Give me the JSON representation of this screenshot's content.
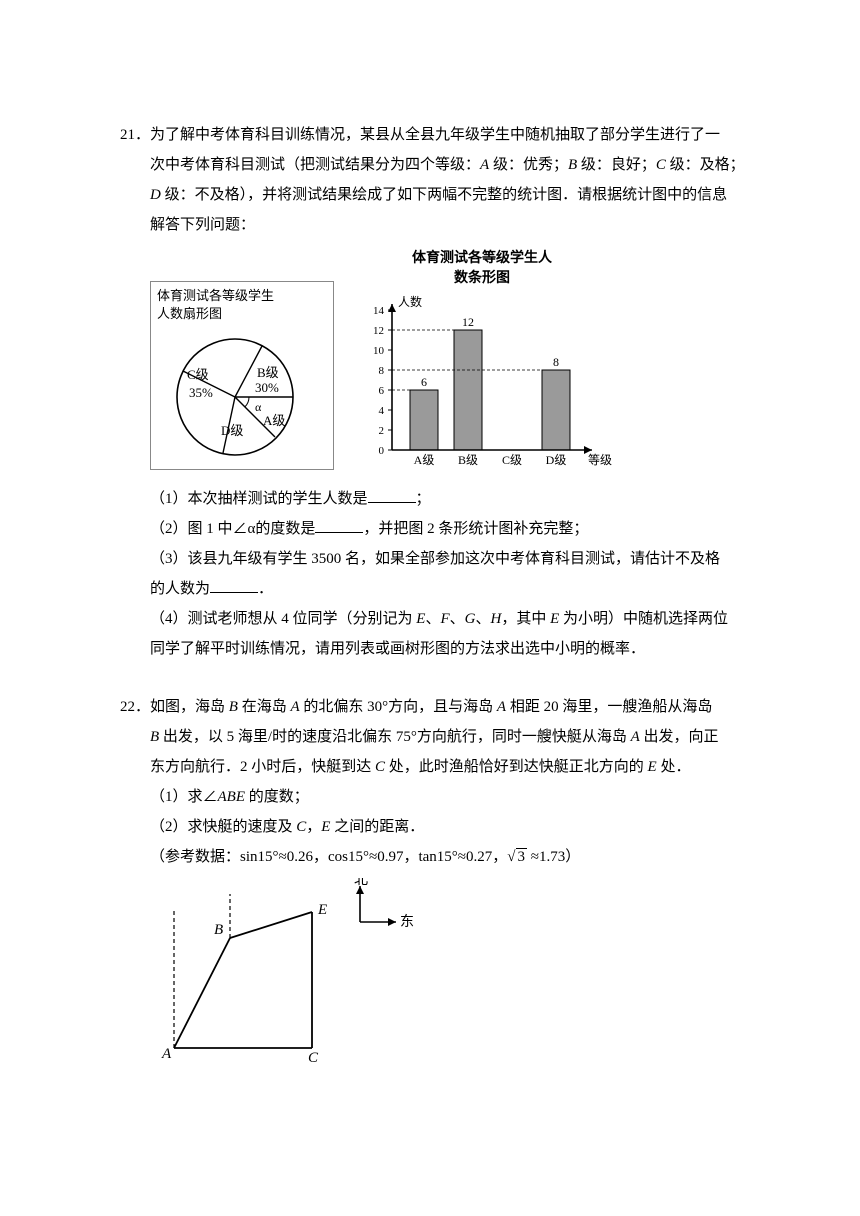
{
  "q21": {
    "num": "21．",
    "stem1": "为了解中考体育科目训练情况，某县从全县九年级学生中随机抽取了部分学生进行了一",
    "stem2": "次中考体育科目测试（把测试结果分为四个等级：",
    "gradeA_label": "A",
    "gradeA_txt": " 级：优秀；",
    "gradeB_label": "B",
    "gradeB_txt": " 级：良好；",
    "gradeC_label": "C",
    "gradeC_txt": " 级：及格；",
    "stem3_pre": "",
    "gradeD_label": "D",
    "gradeD_txt": " 级：不及格），并将测试结果绘成了如下两幅不完整的统计图．请根据统计图中的信息",
    "stem4": "解答下列问题：",
    "pie": {
      "title1": "体育测试各等级学生",
      "title2": "人数扇形图",
      "labels": {
        "A": "A级",
        "B": "B级",
        "C": "C级",
        "D": "D级"
      },
      "percents": {
        "B": "30%",
        "C": "35%"
      },
      "alpha": "α",
      "colors": {
        "bg": "#ffffff",
        "stroke": "#000000"
      }
    },
    "bar": {
      "title1": "体育测试各等级学生人",
      "title2": "数条形图",
      "ylabel": "人数",
      "xlabel": "等级",
      "categories": [
        "A级",
        "B级",
        "C级",
        "D级"
      ],
      "values": [
        6,
        12,
        null,
        8
      ],
      "value_labels": [
        "6",
        "12",
        "",
        "8"
      ],
      "ymax": 14,
      "ytick_step": 2,
      "yticks": [
        "0",
        "2",
        "4",
        "6",
        "8",
        "10",
        "12",
        "14"
      ],
      "bar_color": "#9a9a9a",
      "bar_border": "#000",
      "axis_color": "#000",
      "grid": "none"
    },
    "p1": "（1）本次抽样测试的学生人数是",
    "p1_tail": "；",
    "p2a": "（2）图 1 中∠α的度数是",
    "p2b": "，并把图 2 条形统计图补充完整；",
    "p3a": "（3）该县九年级有学生 3500 名，如果全部参加这次中考体育科目测试，请估计不及格",
    "p3b": "的人数为",
    "p3_tail": "．",
    "p4a": "（4）测试老师想从 4 位同学（分别记为 ",
    "p4_E": "E",
    "p4_F": "F",
    "p4_G": "G",
    "p4_H": "H",
    "p4_mid": "，其中 ",
    "p4_E2": "E",
    "p4_mid2": " 为小明）中随机选择两位",
    "p4b": "同学了解平时训练情况，请用列表或画树形图的方法求出选中小明的概率．"
  },
  "q22": {
    "num": "22．",
    "l1a": "如图，海岛 ",
    "B": "B",
    "l1b": " 在海岛 ",
    "A": "A",
    "l1c": " 的北偏东 30°方向，且与海岛 ",
    "l1d": " 相距 20 海里，一艘渔船从海岛",
    "l2a": "",
    "l2b": " 出发，以 5 海里/时的速度沿北偏东 75°方向航行，同时一艘快艇从海岛 ",
    "l2c": " 出发，向正",
    "l3a": "东方向航行．2 小时后，快艇到达 ",
    "C": "C",
    "l3b": " 处，此时渔船恰好到达快艇正北方向的 ",
    "E": "E",
    "l3c": " 处．",
    "p1": "（1）求∠",
    "p1_abe": "ABE",
    "p1_tail": " 的度数；",
    "p2": "（2）求快艇的速度及 ",
    "p2_c": "C",
    "p2_sep": "，",
    "p2_e": "E",
    "p2_tail": " 之间的距离．",
    "ref": "（参考数据：sin15°≈0.26，cos15°≈0.97，tan15°≈0.27，",
    "sqrt3": "3",
    "approx": "≈1.73）",
    "compass": {
      "north": "北",
      "east": "东"
    },
    "diagram": {
      "A": "A",
      "B": "B",
      "C": "C",
      "E": "E",
      "stroke": "#000"
    }
  }
}
